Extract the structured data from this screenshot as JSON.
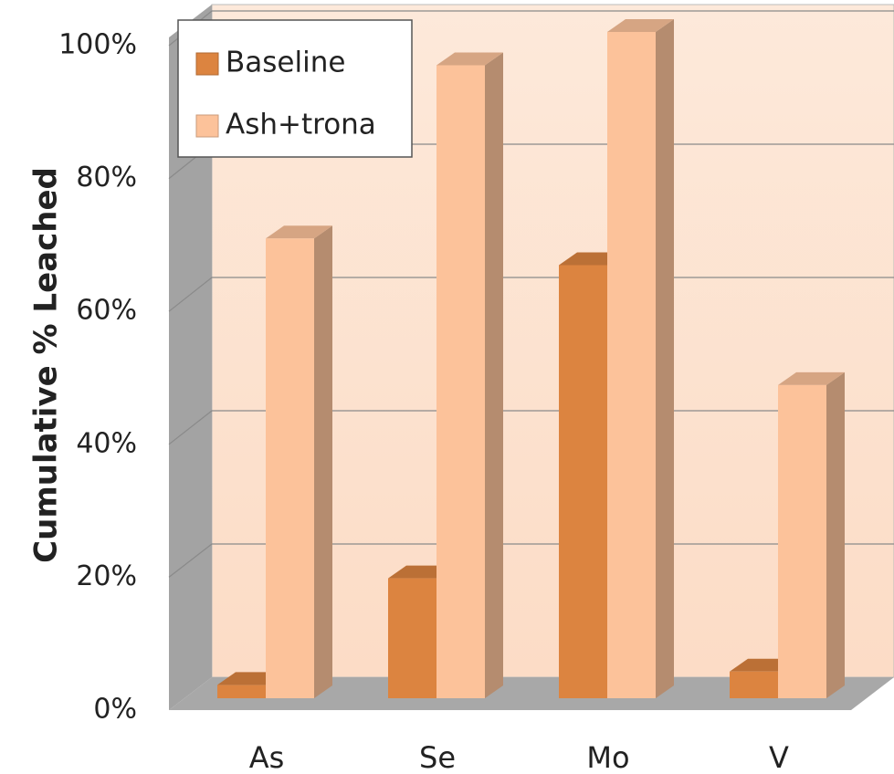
{
  "chart_data": {
    "type": "bar3d",
    "categories": [
      "As",
      "Se",
      "Mo",
      "V"
    ],
    "series": [
      {
        "name": "Baseline",
        "color": "#dc8440",
        "values": [
          2,
          18,
          65,
          4
        ]
      },
      {
        "name": "Ash+trona",
        "color": "#fcc29a",
        "values": [
          69,
          95,
          100,
          47
        ]
      }
    ],
    "ylabel": "Cumulative % Leached",
    "ylim": [
      0,
      100
    ],
    "yticks": [
      {
        "value": 0,
        "label": "0%"
      },
      {
        "value": 20,
        "label": "20%"
      },
      {
        "value": 40,
        "label": "40%"
      },
      {
        "value": 60,
        "label": "60%"
      },
      {
        "value": 80,
        "label": "80%"
      },
      {
        "value": 100,
        "label": "100%"
      }
    ],
    "grid": true,
    "legend": "upper left"
  }
}
